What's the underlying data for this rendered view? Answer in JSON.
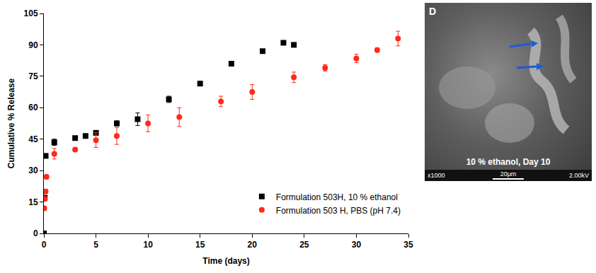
{
  "chart_data": {
    "type": "scatter",
    "x_label": "Time (days)",
    "y_label": "Cumulative % Release",
    "xlim": [
      0,
      35
    ],
    "xticks": [
      0,
      5,
      10,
      15,
      20,
      25,
      30,
      35
    ],
    "ylim": [
      0,
      105
    ],
    "yticks": [
      0,
      15,
      30,
      45,
      60,
      75,
      90,
      105
    ],
    "grid": false,
    "legend": "lower right",
    "series": [
      {
        "name": "Formulation 503H, 10 % ethanol",
        "color": "#000000",
        "marker": "square",
        "x": [
          0,
          0.08,
          0.17,
          1,
          3,
          4,
          5,
          7,
          9,
          12,
          15,
          18,
          21,
          23,
          24
        ],
        "values": [
          0,
          17,
          37,
          43.5,
          45.5,
          46.5,
          48,
          52.5,
          54.5,
          64,
          71.5,
          81,
          87,
          91,
          90
        ],
        "errors": [
          0.5,
          1,
          1,
          1.5,
          0.8,
          0.8,
          1,
          1.2,
          3,
          1.5,
          1,
          0.8,
          0.8,
          0.8,
          0.8
        ]
      },
      {
        "name": "Formulation 503 H, PBS (pH 7.4)",
        "color": "#ff2a1a",
        "marker": "circle",
        "x": [
          0.04,
          0.08,
          0.17,
          0.25,
          1,
          3,
          5,
          7,
          10,
          13,
          17,
          20,
          24,
          27,
          30,
          32,
          34
        ],
        "values": [
          12,
          16.5,
          20,
          27,
          38,
          40,
          44.5,
          46.5,
          52.5,
          55.5,
          63,
          67.5,
          74.5,
          79,
          83.5,
          87.5,
          93
        ],
        "errors": [
          1,
          1,
          1,
          1,
          2.5,
          1,
          3.5,
          4,
          4,
          4.5,
          2.5,
          3.5,
          2.5,
          1.5,
          2,
          1,
          3.5
        ]
      }
    ]
  },
  "image_panel": {
    "panel_label": "D",
    "caption": "10 % ethanol, Day 10",
    "magnification": "x1000",
    "scale_bar": "20μm",
    "voltage": "2.00kV"
  }
}
